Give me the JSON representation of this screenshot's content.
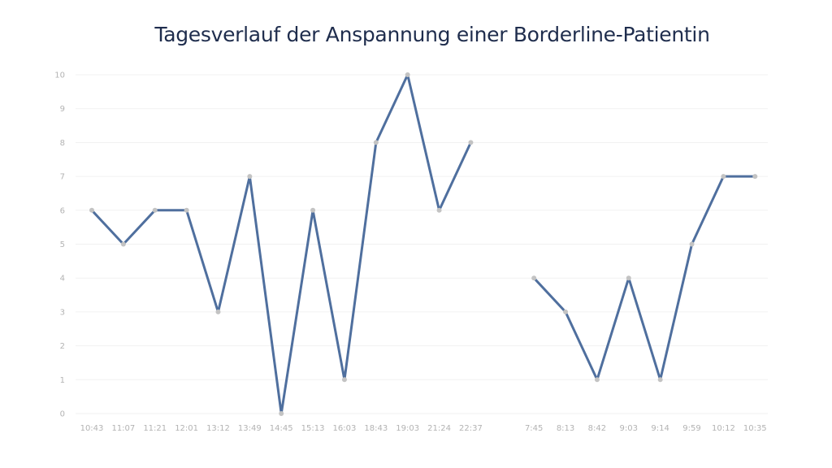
{
  "chart_data": {
    "type": "line",
    "title": "Tagesverlauf der Anspannung einer Borderline-Patientin",
    "categories": [
      "10:43",
      "11:07",
      "11:21",
      "12:01",
      "13:12",
      "13:49",
      "14:45",
      "15:13",
      "16:03",
      "18:43",
      "19:03",
      "21:24",
      "22:37",
      "",
      "7:45",
      "8:13",
      "8:42",
      "9:03",
      "9:14",
      "9:59",
      "10:12",
      "10:35"
    ],
    "series": [
      {
        "values": [
          6,
          5,
          6,
          6,
          3,
          7,
          0,
          6,
          1,
          8,
          10,
          6,
          8,
          null,
          4,
          3,
          1,
          4,
          1,
          5,
          7,
          7
        ]
      }
    ],
    "ylim": [
      0,
      10
    ],
    "yticks": [
      0,
      1,
      2,
      3,
      4,
      5,
      6,
      7,
      8,
      9,
      10
    ],
    "grid": true,
    "colors": {
      "line": "#4f6f9e",
      "marker": "#c3c3c3",
      "grid": "#f1f1f1",
      "tick": "#b3b3b3"
    }
  }
}
